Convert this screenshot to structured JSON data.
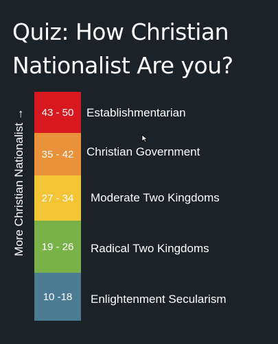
{
  "title": {
    "line1": "Quiz: How Christian",
    "line2": "Nationalist Are you?"
  },
  "axis": {
    "label": "More Christian Nationalist",
    "arrow": "→"
  },
  "levels": [
    {
      "range": "43 - 50",
      "label": "Establishmentarian",
      "color": "#d7191f"
    },
    {
      "range": "35 - 42",
      "label": "Christian Government",
      "color": "#e9923a"
    },
    {
      "range": "27 - 34",
      "label": "Moderate Two Kingdoms",
      "color": "#f2c436"
    },
    {
      "range": "19 - 26",
      "label": "Radical Two Kingdoms",
      "color": "#7ab24a"
    },
    {
      "range": "10 -18",
      "label": "Enlightenment Secularism",
      "color": "#4c7c93"
    }
  ],
  "icons": {
    "cursor": "mouse-pointer-icon"
  }
}
